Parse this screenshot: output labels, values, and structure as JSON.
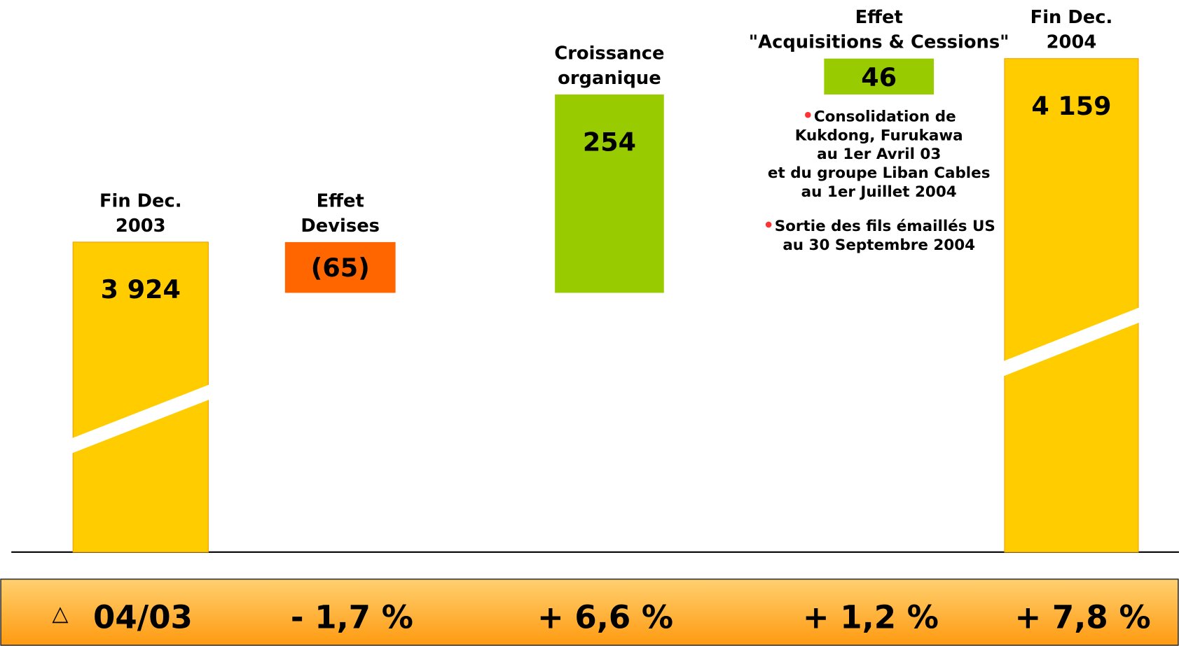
{
  "chart_data": {
    "type": "waterfall",
    "categories": [
      [
        "Fin Dec.",
        "2003"
      ],
      [
        "Effet",
        "Devises"
      ],
      [
        "Croissance",
        "organique"
      ],
      [
        "Effet",
        "\"Acquisitions & Cessions\""
      ],
      [
        "Fin Dec.",
        "2004"
      ]
    ],
    "measure": [
      "absolute",
      "relative",
      "relative",
      "relative",
      "absolute"
    ],
    "values": [
      3924,
      -65,
      254,
      46,
      4159
    ],
    "value_labels": [
      "3 924",
      "(65)",
      "254",
      "",
      "4 159"
    ],
    "colors": [
      "#ffcc00",
      "#ff6600",
      "#99cc00",
      "#99cc00",
      "#ffcc00"
    ],
    "ylim": [
      3527,
      4234
    ],
    "axis_break": true,
    "annotations": [
      [
        "Consolidation de",
        "Kukdong, Furukawa",
        "au  1er Avril 03",
        "et du groupe Liban Cables",
        "au 1er Juillet 2004"
      ],
      [
        "Sortie des fils émaillés US",
        "au 30 Septembre 2004"
      ]
    ],
    "footer": {
      "symbol": "△",
      "label": "04/03",
      "changes": [
        "- 1,7 %",
        "+ 6,6 %",
        "+ 1,2 %",
        "+ 7,8 %"
      ]
    }
  }
}
